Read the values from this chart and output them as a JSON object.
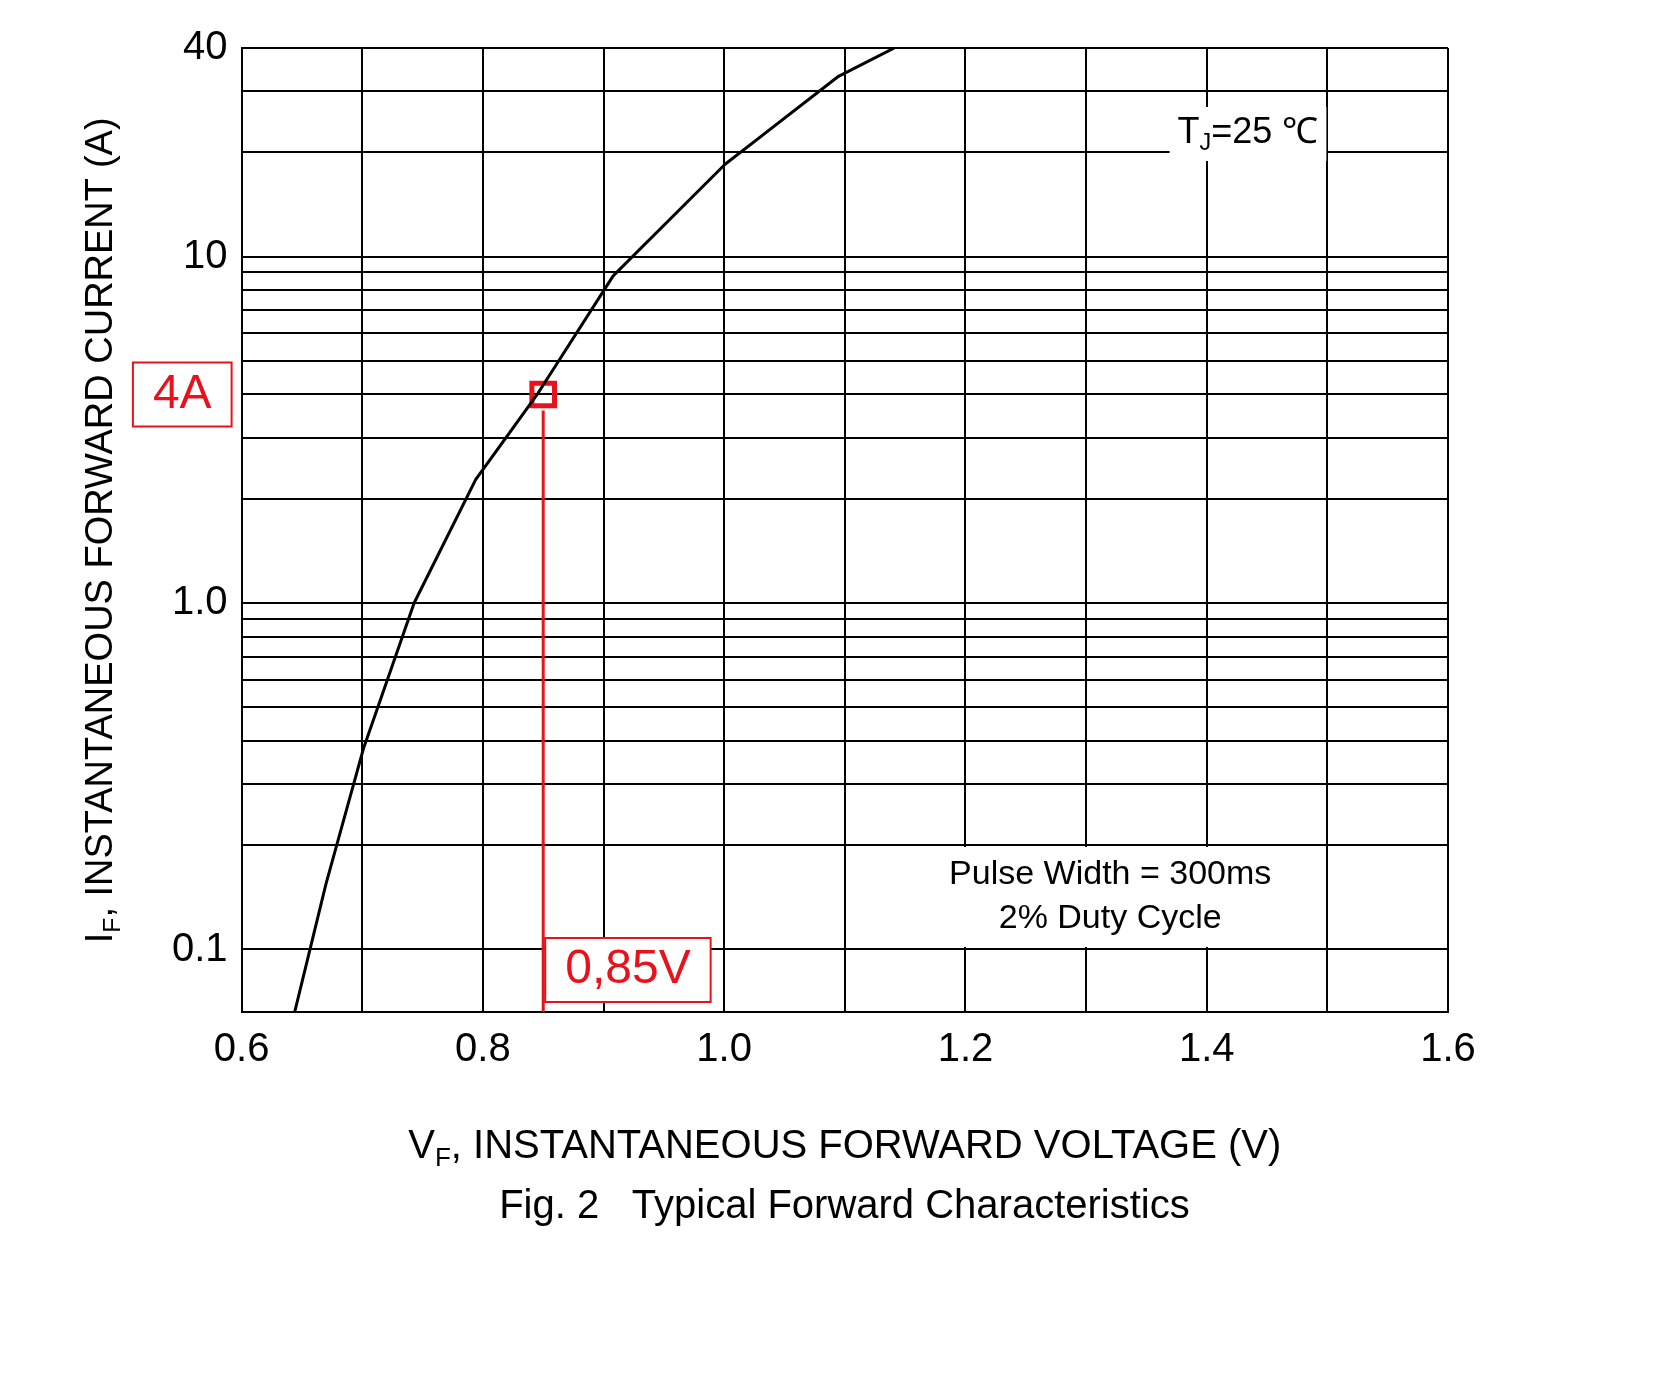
{
  "chart_data": {
    "type": "line",
    "xlabel": "V$_{F}$, INSTANTANEOUS FORWARD VOLTAGE (V)",
    "ylabel": "I$_{F}$, INSTANTANEOUS FORWARD CURRENT (A)",
    "x": [
      0.644,
      0.67,
      0.701,
      0.743,
      0.794,
      0.845,
      0.908,
      1.001,
      1.094,
      1.141
    ],
    "series": [
      {
        "color": "#000000",
        "values": [
          0.066,
          0.155,
          0.38,
          1.0,
          2.27,
          4,
          8.8,
          18.5,
          33,
          40
        ]
      },
      {
        "type": "scatter",
        "x": [
          0.85
        ],
        "values": [
          4
        ],
        "color": "#e8121b",
        "marker": "square"
      }
    ],
    "log": "y",
    "xlim": [
      0.6,
      1.6
    ],
    "ylim": [
      0.066,
      40
    ],
    "xticks": [
      0.6,
      {
        "value": 0.7,
        "label": null
      },
      0.8,
      {
        "value": 0.9,
        "label": null
      },
      {
        "value": 1,
        "label": "1.0"
      },
      {
        "value": 1.1,
        "label": null
      },
      1.2,
      {
        "value": 1.3,
        "label": null
      },
      1.4,
      {
        "value": 1.5,
        "label": null
      },
      1.6
    ],
    "yticks": [
      {
        "value": 0.1,
        "label": "0.1"
      },
      {
        "value": 0.2,
        "label": null
      },
      {
        "value": 0.3,
        "label": null
      },
      {
        "value": 0.4,
        "label": null
      },
      {
        "value": 0.5,
        "label": null
      },
      {
        "value": 0.6,
        "label": null
      },
      {
        "value": 0.7,
        "label": null
      },
      {
        "value": 0.8,
        "label": null
      },
      {
        "value": 0.9,
        "label": null
      },
      {
        "value": 1,
        "label": "1.0"
      },
      {
        "value": 2,
        "label": null
      },
      {
        "value": 3,
        "label": null
      },
      {
        "value": 4,
        "label": null
      },
      {
        "value": 5,
        "label": null
      },
      {
        "value": 6,
        "label": null
      },
      {
        "value": 7,
        "label": null
      },
      {
        "value": 8,
        "label": null
      },
      {
        "value": 9,
        "label": null
      },
      10,
      {
        "value": 20,
        "label": null
      },
      {
        "value": 30,
        "label": null
      },
      40
    ],
    "ref_lines": [
      {
        "axis": "x",
        "value": 0.85,
        "color": "#e8121b"
      }
    ],
    "grid": true,
    "marker": "none",
    "line_style": "solid",
    "annotations": [
      "T$_{J}$=25 ℃",
      "Pulse Width = 300ms\n2% Duty Cycle",
      "Fig. 2   Typical Forward Characteristics",
      "4A",
      "0,85V"
    ]
  }
}
